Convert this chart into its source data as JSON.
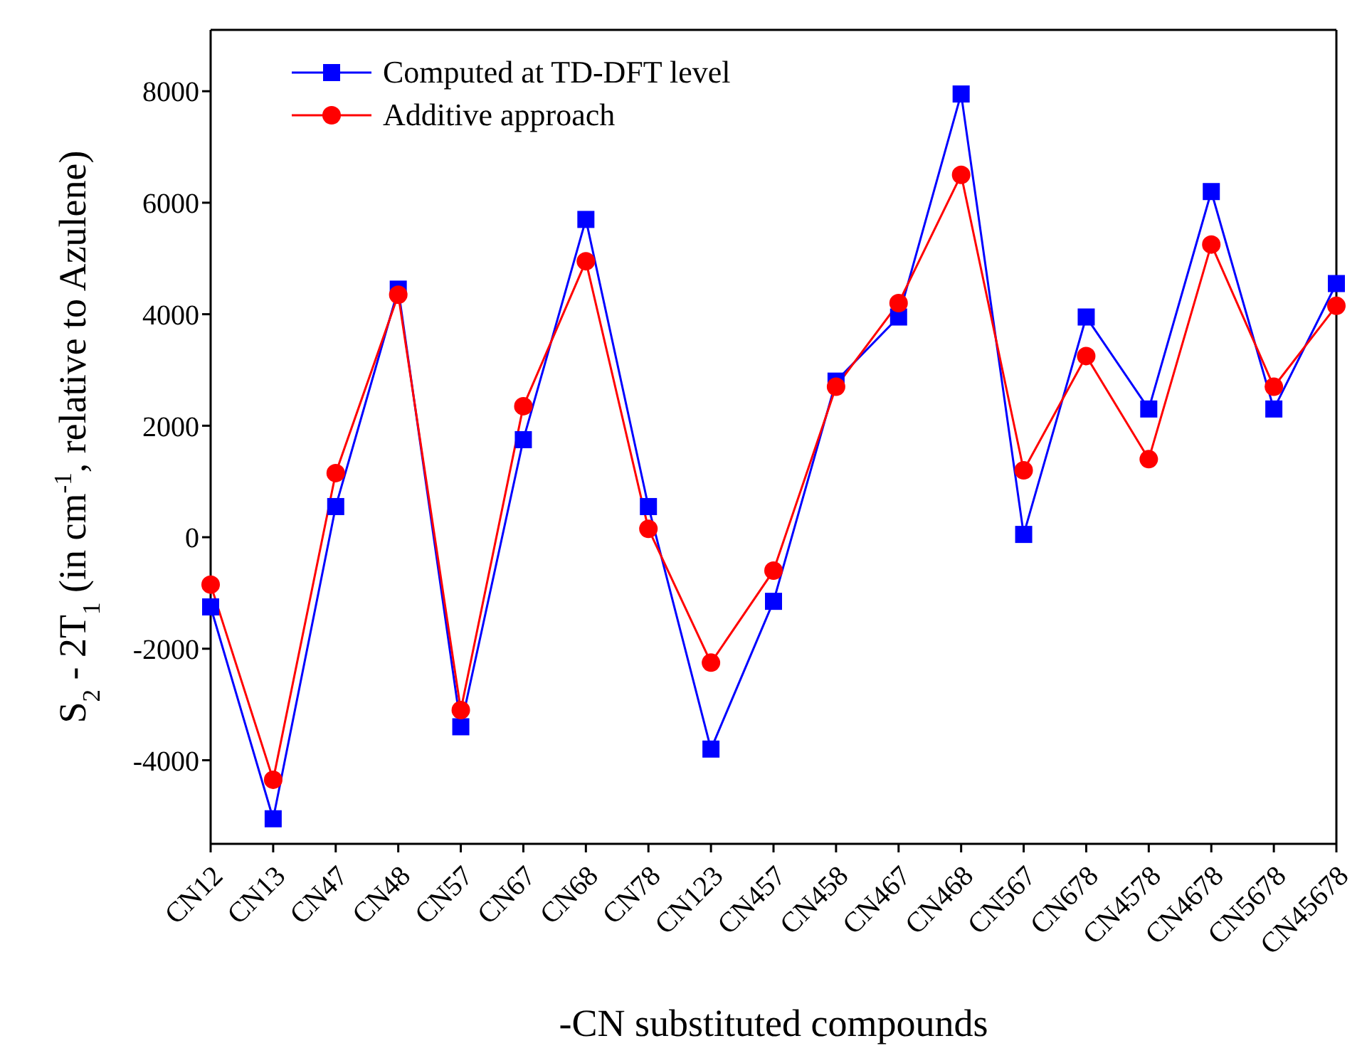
{
  "chart_data": {
    "type": "line",
    "xlabel": "-CN substituted compounds",
    "ylabel": "S$_{2}$ - 2T$_{1}$ (in cm$^{-1}$, relative to Azulene)",
    "categories": [
      "CN12",
      "CN13",
      "CN47",
      "CN48",
      "CN57",
      "CN67",
      "CN68",
      "CN78",
      "CN123",
      "CN457",
      "CN458",
      "CN467",
      "CN468",
      "CN567",
      "CN678",
      "CN4578",
      "CN4678",
      "CN5678",
      "CN45678"
    ],
    "series": [
      {
        "name": "Computed at TD-DFT level",
        "color": "#0000ff",
        "marker": "square",
        "values": [
          -1250,
          -5050,
          550,
          4450,
          -3400,
          1750,
          5700,
          550,
          -3800,
          -1150,
          2800,
          3950,
          7950,
          50,
          3950,
          2300,
          6200,
          2300,
          4550
        ]
      },
      {
        "name": "Additive approach",
        "color": "#ff0000",
        "marker": "circle",
        "values": [
          -850,
          -4350,
          1150,
          4350,
          -3100,
          2350,
          4950,
          150,
          -2250,
          -600,
          2700,
          4200,
          6500,
          1200,
          3250,
          1400,
          5250,
          2700,
          4150
        ]
      }
    ],
    "ylim": [
      -5500,
      9100
    ],
    "yticks": [
      -4000,
      -2000,
      0,
      2000,
      4000,
      6000,
      8000
    ],
    "grid": false,
    "legend": "top left",
    "line_style": "solid"
  }
}
